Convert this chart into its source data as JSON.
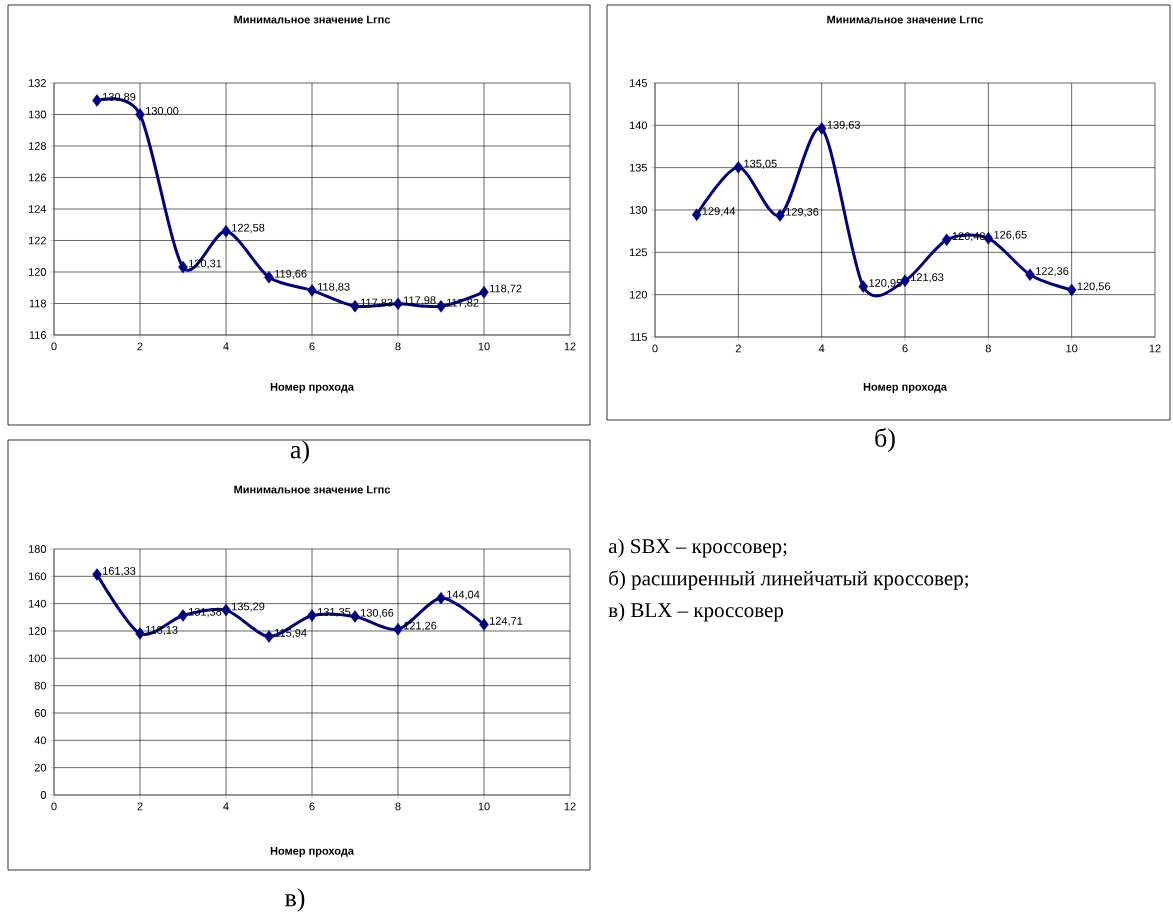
{
  "chart_data": [
    {
      "type": "line",
      "title": "Минимальное значение Lгпс",
      "xlabel": "Номер прохода",
      "x": [
        1,
        2,
        3,
        4,
        5,
        6,
        7,
        8,
        9,
        10
      ],
      "values": [
        130.89,
        130.0,
        120.31,
        122.58,
        119.66,
        118.83,
        117.83,
        117.98,
        117.82,
        118.72
      ],
      "value_labels": [
        "130,89",
        "130,00",
        "120,31",
        "122,58",
        "119,66",
        "118,83",
        "117,83",
        "117,98",
        "117,82",
        "118,72"
      ],
      "color": "#000080",
      "marker": "diamond",
      "grid": true,
      "xlim": [
        0,
        12
      ],
      "xticks": [
        0,
        2,
        4,
        6,
        8,
        10,
        12
      ],
      "ylim": [
        116,
        132
      ],
      "yticks": [
        116,
        118,
        120,
        122,
        124,
        126,
        128,
        130,
        132
      ],
      "annotations": [
        "а)"
      ]
    },
    {
      "type": "line",
      "title": "Минимальное значение Lгпс",
      "xlabel": "Номер прохода",
      "x": [
        1,
        2,
        3,
        4,
        5,
        6,
        7,
        8,
        9,
        10
      ],
      "values": [
        129.44,
        135.05,
        129.36,
        139.63,
        120.95,
        121.63,
        126.48,
        126.65,
        122.36,
        120.56
      ],
      "value_labels": [
        "129,44",
        "135,05",
        "129,36",
        "139,63",
        "120,95",
        "121,63",
        "126,48",
        "126,65",
        "122,36",
        "120,56"
      ],
      "color": "#000080",
      "marker": "diamond",
      "grid": true,
      "xlim": [
        0,
        12
      ],
      "xticks": [
        0,
        2,
        4,
        6,
        8,
        10,
        12
      ],
      "ylim": [
        115,
        145
      ],
      "yticks": [
        115,
        120,
        125,
        130,
        135,
        140,
        145
      ],
      "annotations": [
        "б)"
      ]
    },
    {
      "type": "line",
      "title": "Минимальное значение Lгпс",
      "xlabel": "Номер прохода",
      "x": [
        1,
        2,
        3,
        4,
        5,
        6,
        7,
        8,
        9,
        10
      ],
      "values": [
        161.33,
        118.13,
        131.38,
        135.29,
        115.94,
        131.35,
        130.66,
        121.26,
        144.04,
        124.71
      ],
      "value_labels": [
        "161,33",
        "118,13",
        "131,38",
        "135,29",
        "115,94",
        "131,35",
        "130,66",
        "121,26",
        "144,04",
        "124,71"
      ],
      "color": "#000080",
      "marker": "diamond",
      "grid": true,
      "xlim": [
        0,
        12
      ],
      "xticks": [
        0,
        2,
        4,
        6,
        8,
        10,
        12
      ],
      "ylim": [
        0,
        180
      ],
      "yticks": [
        0,
        20,
        40,
        60,
        80,
        100,
        120,
        140,
        160,
        180
      ],
      "annotations": [
        "в)"
      ]
    },
    {
      "type": "other",
      "annotations": [
        "а) SBX – кроссовер;",
        "б) расширенный линейчатый кроссовер;",
        "в) BLX – кроссовер"
      ]
    }
  ]
}
